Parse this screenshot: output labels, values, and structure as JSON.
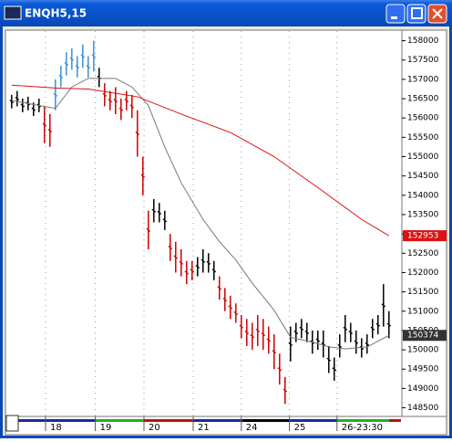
{
  "window_title": "ENQH5,15",
  "chart_data": {
    "type": "range",
    "highs": [
      156600,
      156700,
      156500,
      156550,
      156400,
      156500,
      156300,
      156100,
      157000,
      157350,
      157700,
      157800,
      157600,
      157900,
      157600,
      158000,
      157300,
      156900,
      156700,
      156800,
      156500,
      156700,
      156600,
      156200,
      155000,
      153600,
      153900,
      153800,
      153600,
      153000,
      152800,
      152600,
      152300,
      152300,
      152400,
      152600,
      152500,
      152300,
      151900,
      151600,
      151400,
      151200,
      150900,
      150800,
      150700,
      150900,
      150800,
      150600,
      150400,
      149900,
      149300,
      150600,
      150700,
      150800,
      150700,
      150500,
      150500,
      150500,
      150100,
      149800,
      150400,
      150900,
      150700,
      150500,
      150300,
      150400,
      150800,
      150900,
      151700,
      151000
    ],
    "lows": [
      156250,
      156300,
      156150,
      156200,
      156050,
      156150,
      155350,
      155250,
      156200,
      156800,
      157100,
      157250,
      157050,
      157300,
      157050,
      157200,
      156800,
      156300,
      156200,
      156100,
      155950,
      156200,
      156000,
      155000,
      154000,
      152600,
      153300,
      153300,
      153100,
      152300,
      152000,
      151900,
      151700,
      151800,
      151900,
      152000,
      152000,
      151800,
      151300,
      151000,
      150800,
      150700,
      150300,
      150100,
      150000,
      150100,
      150000,
      149900,
      149500,
      149100,
      148600,
      149700,
      150200,
      150300,
      150200,
      149900,
      150000,
      149800,
      149400,
      149200,
      149800,
      150200,
      150200,
      149900,
      149800,
      149900,
      150300,
      150400,
      150600,
      150300
    ],
    "bar_colors": [
      "#000",
      "#000",
      "#000",
      "#000",
      "#000",
      "#000",
      "#c00",
      "#c00",
      "#3a8fd8",
      "#3a8fd8",
      "#3a8fd8",
      "#3a8fd8",
      "#3a8fd8",
      "#3a8fd8",
      "#3a8fd8",
      "#3a8fd8",
      "#000",
      "#c00",
      "#c00",
      "#c00",
      "#c00",
      "#c00",
      "#c00",
      "#c00",
      "#c00",
      "#c00",
      "#000",
      "#000",
      "#000",
      "#c00",
      "#c00",
      "#c00",
      "#c00",
      "#c00",
      "#000",
      "#000",
      "#000",
      "#000",
      "#c00",
      "#c00",
      "#c00",
      "#c00",
      "#c00",
      "#c00",
      "#c00",
      "#c00",
      "#c00",
      "#c00",
      "#c00",
      "#c00",
      "#c00",
      "#000",
      "#000",
      "#000",
      "#000",
      "#000",
      "#000",
      "#000",
      "#000",
      "#000",
      "#000",
      "#000",
      "#000",
      "#000",
      "#000",
      "#000",
      "#000",
      "#000",
      "#000",
      "#000"
    ],
    "series": [
      {
        "color": "#777777",
        "x": [
          0,
          5,
          8,
          11,
          14,
          19,
          22,
          25,
          28,
          31,
          35,
          38,
          41,
          44,
          48,
          51,
          55,
          58,
          61,
          65,
          69
        ],
        "values": [
          156450,
          156325,
          156250,
          156800,
          157025,
          157025,
          156800,
          156325,
          155250,
          154325,
          153375,
          152800,
          152325,
          151725,
          151025,
          150325,
          150200,
          150075,
          150025,
          150075,
          150374
        ]
      },
      {
        "color": "#dd1111",
        "x": [
          0,
          8,
          14,
          23,
          31,
          40,
          48,
          56,
          64,
          69
        ],
        "values": [
          156850,
          156775,
          156750,
          156550,
          156100,
          155625,
          155000,
          154200,
          153375,
          152953
        ]
      }
    ],
    "xlim": [
      -0.8,
      71.2
    ],
    "xticks": [
      {
        "value": 6.2,
        "label": "18"
      },
      {
        "value": 15.3,
        "label": "19"
      },
      {
        "value": 24.2,
        "label": "20"
      },
      {
        "value": 33.2,
        "label": "21"
      },
      {
        "value": 42,
        "label": "24"
      },
      {
        "value": 50.8,
        "label": "25"
      },
      {
        "value": 59.5,
        "label": "26-23:30"
      }
    ],
    "ylim": [
      148300,
      158250
    ],
    "yticks": [
      148500,
      149000,
      149500,
      150000,
      150500,
      151000,
      151500,
      152000,
      152500,
      153000,
      153500,
      154000,
      154500,
      155000,
      155500,
      156000,
      156500,
      157000,
      157500,
      158000
    ],
    "grid": true
  }
}
